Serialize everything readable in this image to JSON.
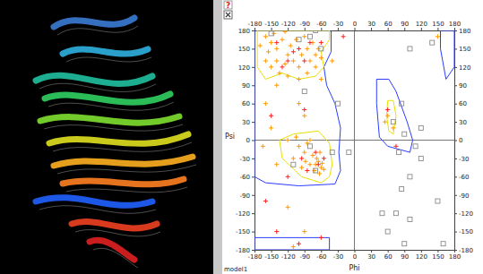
{
  "chart_data": {
    "type": "scatter",
    "x_label": "Phi",
    "y_label": "Psi",
    "annotations": [
      "model1",
      "?"
    ],
    "xlim": [
      -180,
      180
    ],
    "ylim": [
      -180,
      180
    ],
    "xticks": [
      -180,
      -150,
      -120,
      -90,
      -60,
      -30,
      0,
      30,
      60,
      90,
      120,
      150,
      180
    ],
    "yticks": [
      -180,
      -150,
      -120,
      -90,
      -60,
      -30,
      0,
      30,
      60,
      90,
      120,
      150,
      180
    ],
    "series": [
      {
        "type": "line",
        "color": "#2a3cff",
        "x": [
          -180,
          -42,
          -42,
          -55,
          -50,
          -35,
          -25,
          -28,
          -25,
          -35,
          -100,
          -160,
          -180,
          -180
        ],
        "values": [
          180,
          180,
          145,
          120,
          90,
          60,
          20,
          -20,
          -50,
          -72,
          -75,
          -70,
          -60,
          180
        ]
      },
      {
        "type": "line",
        "color": "#2a3cff",
        "x": [
          -180,
          -45,
          -45,
          -180,
          -180
        ],
        "values": [
          -160,
          -160,
          -180,
          -180,
          -160
        ]
      },
      {
        "type": "line",
        "color": "#2a3cff",
        "x": [
          40,
          62,
          75,
          95,
          105,
          100,
          80,
          60,
          45,
          40,
          40
        ],
        "values": [
          100,
          100,
          80,
          30,
          0,
          -20,
          -15,
          -10,
          5,
          60,
          100
        ]
      },
      {
        "type": "line",
        "color": "#2a3cff",
        "x": [
          155,
          180,
          180,
          165,
          155,
          155
        ],
        "values": [
          180,
          180,
          120,
          100,
          150,
          180
        ]
      },
      {
        "type": "line",
        "color": "#e8e000",
        "x": [
          -175,
          -45,
          -45,
          -60,
          -55,
          -70,
          -100,
          -130,
          -160,
          -175,
          -175
        ],
        "values": [
          180,
          180,
          165,
          145,
          120,
          105,
          100,
          110,
          100,
          120,
          180
        ]
      },
      {
        "type": "line",
        "color": "#e8e000",
        "x": [
          -110,
          -65,
          -45,
          -40,
          -45,
          -60,
          -95,
          -130,
          -135,
          -110
        ],
        "values": [
          10,
          15,
          -5,
          -40,
          -60,
          -70,
          -60,
          -30,
          0,
          10
        ]
      },
      {
        "type": "line",
        "color": "#e8e000",
        "x": [
          60,
          70,
          75,
          70,
          62,
          58,
          60
        ],
        "values": [
          65,
          65,
          40,
          10,
          15,
          40,
          65
        ]
      },
      {
        "type": "scatter",
        "marker": "plus",
        "color": "#ff9900",
        "x": [
          -150,
          -140,
          -130,
          -120,
          -125,
          -110,
          -100,
          -95,
          -85,
          -80,
          -70,
          -75,
          -65,
          -140,
          -155,
          -160,
          -170,
          -115,
          -105,
          -90,
          -135,
          -120,
          -100,
          -85,
          -70,
          -60,
          -145,
          -125,
          -160,
          -150,
          -70,
          -65,
          -60,
          -68,
          -75,
          -80,
          -62,
          -58,
          -90,
          -100,
          -85,
          -72,
          -55,
          -110,
          -95,
          -120,
          -80,
          -63,
          -88,
          -105,
          -140,
          -160,
          -100,
          -90,
          -150,
          -165,
          -140,
          -120,
          -90,
          -110,
          60,
          55,
          70,
          -60,
          -40,
          150
        ],
        "values": [
          160,
          150,
          165,
          140,
          125,
          130,
          120,
          140,
          150,
          130,
          140,
          160,
          150,
          130,
          145,
          170,
          155,
          155,
          165,
          170,
          110,
          105,
          100,
          110,
          120,
          135,
          175,
          178,
          130,
          120,
          -40,
          -35,
          -45,
          -30,
          -25,
          -40,
          -20,
          -38,
          -20,
          -10,
          -5,
          -50,
          -48,
          -30,
          -45,
          0,
          0,
          -55,
          -35,
          5,
          90,
          60,
          60,
          40,
          20,
          -10,
          -40,
          -110,
          -150,
          -175,
          40,
          30,
          20,
          100,
          130,
          170
        ]
      },
      {
        "type": "scatter",
        "marker": "plus",
        "color": "#ff2020",
        "x": [
          -120,
          -100,
          -140,
          -80,
          -60,
          -110,
          -90,
          -130,
          -65,
          -70,
          -55,
          -85,
          -95,
          -120,
          -140,
          -100,
          -160,
          -60,
          -90,
          -150,
          60,
          75,
          -20
        ],
        "values": [
          130,
          150,
          160,
          160,
          160,
          145,
          130,
          120,
          -40,
          -20,
          -30,
          -50,
          -30,
          -60,
          -150,
          -170,
          -100,
          -160,
          50,
          40,
          50,
          -10,
          170
        ]
      },
      {
        "type": "scatter",
        "marker": "square",
        "color": "#8a8a8a",
        "x": [
          -80,
          -70,
          -100,
          -150,
          -60,
          -90,
          -80,
          -70,
          -110,
          -40,
          70,
          90,
          80,
          100,
          110,
          85,
          100,
          120,
          140,
          160,
          90,
          75,
          85,
          -10,
          50,
          120,
          -30,
          60,
          100,
          150
        ],
        "values": [
          170,
          180,
          165,
          175,
          150,
          80,
          -10,
          -50,
          -40,
          -20,
          30,
          10,
          -20,
          -60,
          -10,
          60,
          150,
          20,
          160,
          -170,
          -170,
          -120,
          -80,
          -20,
          -120,
          -30,
          60,
          -150,
          -130,
          -100
        ]
      }
    ]
  }
}
